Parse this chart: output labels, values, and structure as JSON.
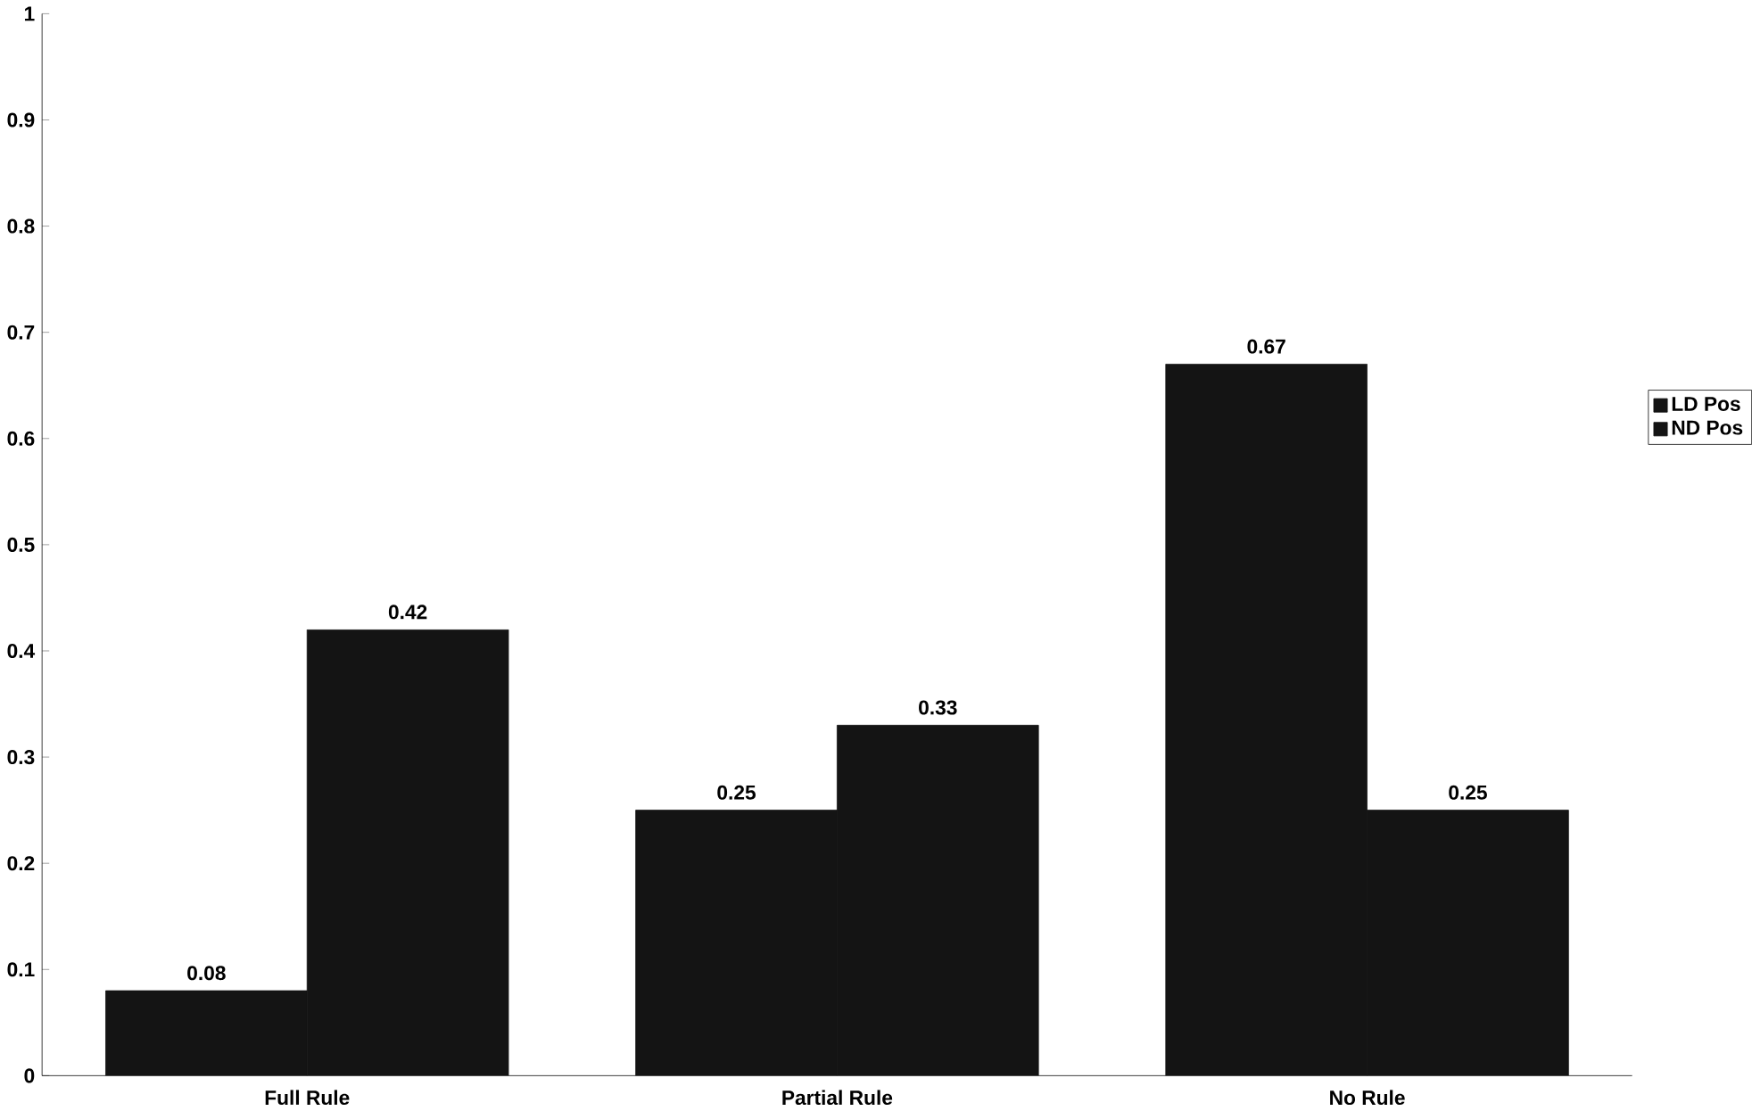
{
  "chart_data": {
    "type": "bar",
    "categories": [
      "Full Rule",
      "Partial Rule",
      "No Rule"
    ],
    "series": [
      {
        "name": "LD Pos",
        "color": "#141414",
        "values": [
          0.08,
          0.25,
          0.67
        ]
      },
      {
        "name": "ND Pos",
        "color": "#141414",
        "values": [
          0.42,
          0.33,
          0.25
        ]
      }
    ],
    "ylim": [
      0,
      1
    ],
    "yticks": [
      0,
      0.1,
      0.2,
      0.3,
      0.4,
      0.5,
      0.6,
      0.7,
      0.8,
      0.9,
      1
    ],
    "data_labels": true,
    "legend": "right"
  }
}
